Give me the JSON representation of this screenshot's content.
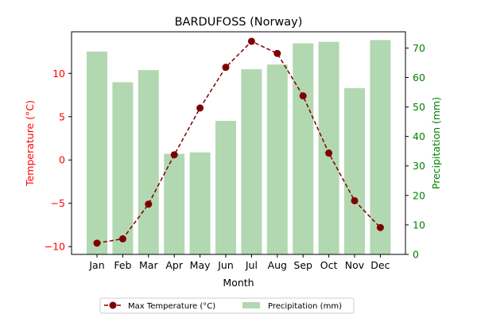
{
  "chart_data": {
    "type": "bar+line",
    "title": "BARDUFOSS (Norway)",
    "xlabel": "Month",
    "categories": [
      "Jan",
      "Feb",
      "Mar",
      "Apr",
      "May",
      "Jun",
      "Jul",
      "Aug",
      "Sep",
      "Oct",
      "Nov",
      "Dec"
    ],
    "left_axis": {
      "label": "Temperature (°C)",
      "ticks": [
        -10,
        -5,
        0,
        5,
        10
      ],
      "ylim": [
        -10.9,
        14.8
      ],
      "color": "#ff0000"
    },
    "right_axis": {
      "label": "Precipitation (mm)",
      "ticks": [
        0,
        10,
        20,
        30,
        40,
        50,
        60,
        70
      ],
      "ylim": [
        0,
        75.5
      ],
      "color": "#008000"
    },
    "series": [
      {
        "name": "Max Temperature (°C)",
        "kind": "line",
        "axis": "left",
        "color": "#800000",
        "style": "dashed",
        "marker": "circle",
        "values": [
          -9.6,
          -9.1,
          -5.1,
          0.6,
          6.0,
          10.7,
          13.7,
          12.3,
          7.4,
          0.8,
          -4.7,
          -7.8
        ]
      },
      {
        "name": "Precipitation (mm)",
        "kind": "bar",
        "axis": "right",
        "color": "#b2d8b2",
        "values": [
          68.8,
          58.4,
          62.5,
          34.1,
          34.6,
          45.3,
          62.8,
          64.4,
          71.6,
          72.1,
          56.4,
          72.7
        ]
      }
    ],
    "legend": {
      "placement": "bottom-center",
      "items": [
        "Max Temperature (°C)",
        "Precipitation (mm)"
      ]
    }
  }
}
